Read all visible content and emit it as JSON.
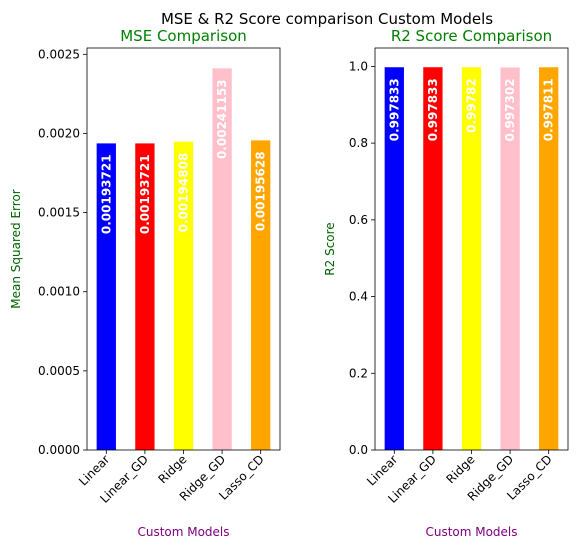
{
  "figure": {
    "suptitle": "MSE & R2 Score comparison Custom Models"
  },
  "chart_data": [
    {
      "type": "bar",
      "title": "MSE Comparison",
      "title_color": "#008000",
      "xlabel": "Custom Models",
      "xlabel_color": "#800080",
      "ylabel": "Mean Squared Error",
      "ylabel_color": "#006400",
      "categories": [
        "Linear",
        "Linear_GD",
        "Ridge",
        "Ridge_GD",
        "Lasso_CD"
      ],
      "values": [
        0.00193721,
        0.00193721,
        0.00194808,
        0.00241153,
        0.00195628
      ],
      "bar_labels": [
        "0.00193721",
        "0.00193721",
        "0.00194808",
        "0.00241153",
        "0.00195628"
      ],
      "colors": [
        "#0000ff",
        "#ff0000",
        "#ffff00",
        "#ffc0cb",
        "#ffa500"
      ],
      "ylim": [
        0,
        0.00254
      ],
      "yticks": [
        0,
        0.0005,
        0.001,
        0.0015,
        0.002,
        0.0025
      ],
      "ytick_labels": [
        "0.0000",
        "0.0005",
        "0.0010",
        "0.0015",
        "0.0020",
        "0.0025"
      ],
      "grid": false,
      "legend": "none"
    },
    {
      "type": "bar",
      "title": "R2 Score Comparison",
      "title_color": "#008000",
      "xlabel": "Custom Models",
      "xlabel_color": "#800080",
      "ylabel": "R2 Score",
      "ylabel_color": "#006400",
      "categories": [
        "Linear",
        "Linear_GD",
        "Ridge",
        "Ridge_GD",
        "Lasso_CD"
      ],
      "values": [
        0.997833,
        0.997833,
        0.99782,
        0.997302,
        0.997811
      ],
      "bar_labels": [
        "0.997833",
        "0.997833",
        "0.99782",
        "0.997302",
        "0.997811"
      ],
      "colors": [
        "#0000ff",
        "#ff0000",
        "#ffff00",
        "#ffc0cb",
        "#ffa500"
      ],
      "ylim": [
        0,
        1.048
      ],
      "yticks": [
        0,
        0.2,
        0.4,
        0.6,
        0.8,
        1.0
      ],
      "ytick_labels": [
        "0.0",
        "0.2",
        "0.4",
        "0.6",
        "0.8",
        "1.0"
      ],
      "grid": false,
      "legend": "none"
    }
  ]
}
